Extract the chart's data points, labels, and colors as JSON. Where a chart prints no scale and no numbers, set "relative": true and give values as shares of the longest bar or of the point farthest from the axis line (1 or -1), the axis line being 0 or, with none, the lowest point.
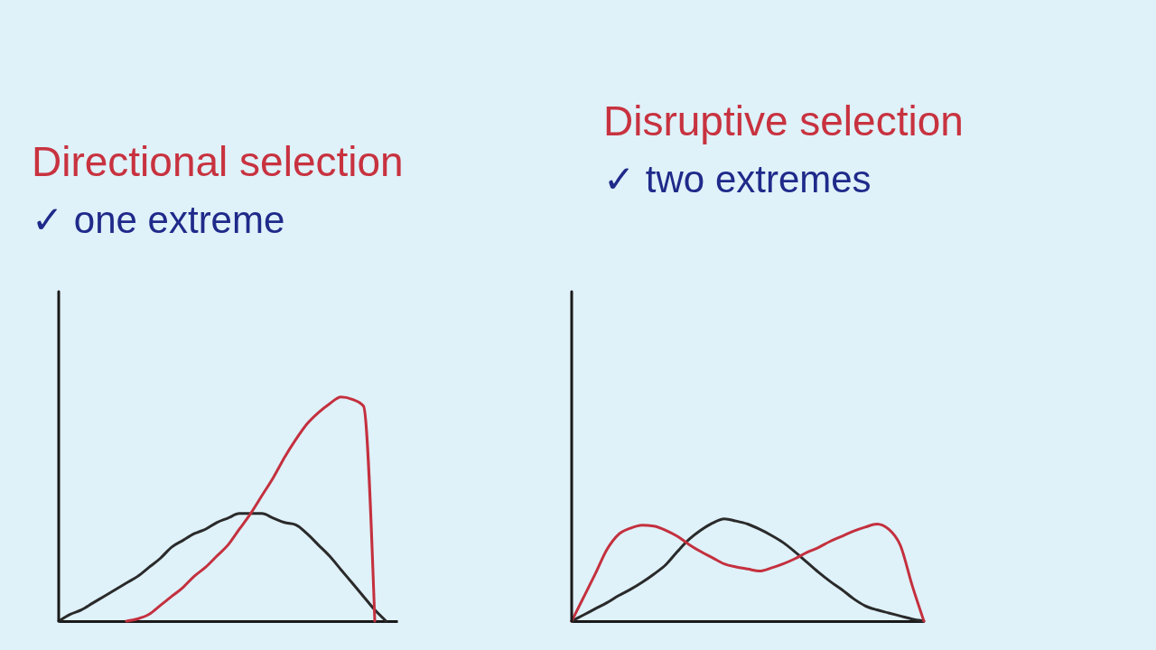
{
  "chart_data": [
    {
      "type": "line",
      "title": "Directional selection",
      "subtitle": "✓ one extreme",
      "relative": true,
      "categories": [
        null,
        null,
        null,
        null,
        null,
        null,
        null,
        null,
        null,
        null,
        null,
        null,
        null,
        null,
        null,
        null,
        null,
        null,
        null,
        null,
        null,
        null,
        null,
        null,
        null,
        null,
        null,
        null,
        null,
        null,
        null
      ],
      "series": [
        {
          "color": "#2a2a2a",
          "values": [
            0,
            0.03,
            0.05,
            0.08,
            0.11,
            0.14,
            0.17,
            0.2,
            0.24,
            0.28,
            0.33,
            0.36,
            0.39,
            0.41,
            0.44,
            0.46,
            0.48,
            0.48,
            0.48,
            0.46,
            0.44,
            0.43,
            0.39,
            0.34,
            0.29,
            0.23,
            0.17,
            0.11,
            0.05,
            0,
            null
          ]
        },
        {
          "color": "#c4303e",
          "values": [
            null,
            null,
            null,
            null,
            null,
            null,
            0,
            0.01,
            0.03,
            0.07,
            0.11,
            0.15,
            0.2,
            0.24,
            0.29,
            0.34,
            0.41,
            0.48,
            0.56,
            0.64,
            0.73,
            0.81,
            0.88,
            0.93,
            0.97,
            1,
            0.99,
            0.96,
            0,
            null,
            null
          ]
        }
      ]
    },
    {
      "type": "line",
      "title": "Disruptive selection",
      "subtitle": "✓ two extremes",
      "relative": true,
      "categories": [
        null,
        null,
        null,
        null,
        null,
        null,
        null,
        null,
        null,
        null,
        null,
        null,
        null,
        null,
        null,
        null,
        null,
        null,
        null,
        null,
        null,
        null,
        null,
        null,
        null,
        null,
        null,
        null,
        null,
        null,
        null
      ],
      "series": [
        {
          "color": "#2a2a2a",
          "values": [
            0,
            0.06,
            0.12,
            0.18,
            0.25,
            0.31,
            0.38,
            0.46,
            0.55,
            0.68,
            0.8,
            0.89,
            0.96,
            1,
            0.98,
            0.95,
            0.9,
            0.84,
            0.77,
            0.68,
            0.58,
            0.48,
            0.39,
            0.31,
            0.22,
            0.15,
            0.11,
            0.08,
            0.05,
            0.02,
            0
          ]
        },
        {
          "color": "#c4303e",
          "values": [
            0,
            0.23,
            0.46,
            0.7,
            0.85,
            0.91,
            0.94,
            0.93,
            0.89,
            0.83,
            0.75,
            0.68,
            0.62,
            0.56,
            0.53,
            0.51,
            0.49,
            0.52,
            0.56,
            0.61,
            0.67,
            0.72,
            0.78,
            0.83,
            0.88,
            0.92,
            0.95,
            0.9,
            0.74,
            0.35,
            0
          ]
        }
      ]
    }
  ]
}
